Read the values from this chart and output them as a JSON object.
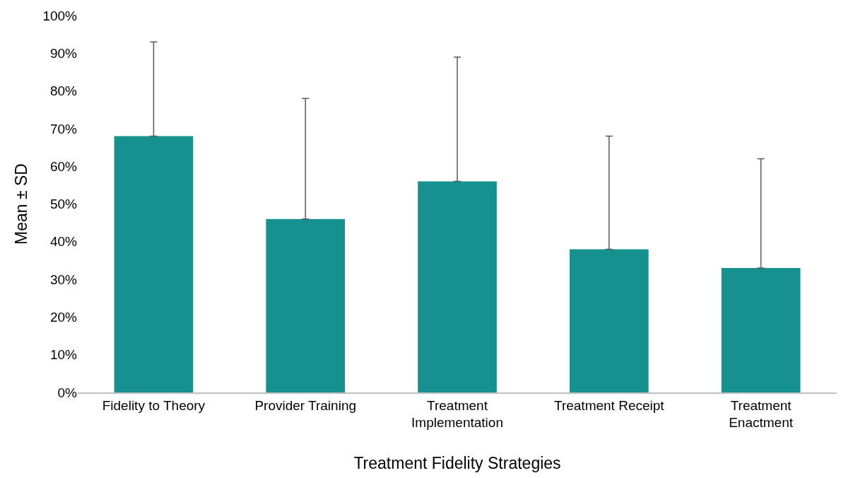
{
  "chart_data": {
    "type": "bar",
    "xlabel": "Treatment Fidelity Strategies",
    "ylabel": "Mean ± SD",
    "categories": [
      "Fidelity to Theory",
      "Provider Training",
      "Treatment\nImplementation",
      "Treatment Receipt",
      "Treatment\nEnactment"
    ],
    "values": [
      68,
      46,
      56,
      38,
      33
    ],
    "errors": [
      [
        68,
        93
      ],
      [
        46,
        78
      ],
      [
        56,
        89
      ],
      [
        38,
        68
      ],
      [
        33,
        62
      ]
    ],
    "color": "#17918f",
    "ylim": [
      0,
      100
    ],
    "yticks": [
      {
        "value": 0,
        "label": "0%"
      },
      {
        "value": 10,
        "label": "10%"
      },
      {
        "value": 20,
        "label": "20%"
      },
      {
        "value": 30,
        "label": "30%"
      },
      {
        "value": 40,
        "label": "40%"
      },
      {
        "value": 50,
        "label": "50%"
      },
      {
        "value": 60,
        "label": "60%"
      },
      {
        "value": 70,
        "label": "70%"
      },
      {
        "value": 80,
        "label": "80%"
      },
      {
        "value": 90,
        "label": "90%"
      },
      {
        "value": 100,
        "label": "100%"
      }
    ],
    "grid": false,
    "legend": false
  }
}
